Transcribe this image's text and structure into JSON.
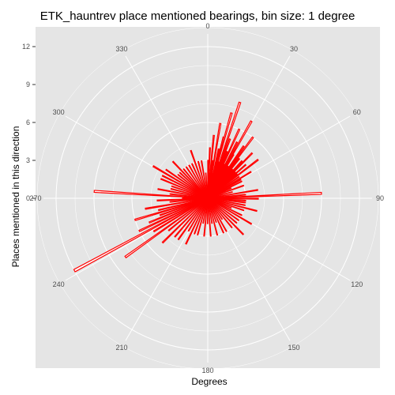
{
  "chart_data": {
    "type": "bar",
    "coord": "polar",
    "title": "ETK_hauntrev place mentioned bearings, bin size: 1 degree",
    "xlabel": "Degrees",
    "ylabel": "Places mentioned in this direction",
    "angle_ticks": [
      "0",
      "30",
      "60",
      "90",
      "120",
      "150",
      "180",
      "210",
      "240",
      "270",
      "300",
      "330"
    ],
    "radial_ticks": [
      "0",
      "3",
      "6",
      "9",
      "12"
    ],
    "ylim": [
      0,
      13
    ],
    "grid": true,
    "bar_color": "#ff0000",
    "bar_fill": "#ffffff",
    "panel_color": "#e5e5e5",
    "grid_color": "#ffffff",
    "bearings_deg": [
      0,
      2,
      4,
      5,
      7,
      9,
      10,
      12,
      14,
      15,
      17,
      18,
      20,
      22,
      24,
      25,
      27,
      29,
      30,
      32,
      34,
      36,
      38,
      40,
      42,
      44,
      46,
      48,
      50,
      52,
      55,
      58,
      60,
      63,
      66,
      70,
      75,
      80,
      84,
      87,
      90,
      93,
      96,
      100,
      104,
      108,
      112,
      116,
      120,
      125,
      130,
      135,
      140,
      145,
      150,
      155,
      160,
      165,
      170,
      175,
      180,
      185,
      190,
      195,
      200,
      205,
      210,
      215,
      220,
      225,
      230,
      234,
      238,
      241,
      244,
      247,
      250,
      253,
      256,
      260,
      264,
      267,
      270,
      273,
      276,
      280,
      284,
      288,
      292,
      296,
      300,
      304,
      308,
      312,
      316,
      320,
      325,
      330,
      335,
      340,
      345,
      350,
      355
    ],
    "counts": [
      3,
      4,
      2,
      5,
      3,
      6,
      2,
      4,
      5,
      7,
      3,
      8,
      5,
      4,
      6,
      3,
      5,
      7,
      4,
      3,
      5,
      6,
      4,
      3,
      4,
      5,
      3,
      4,
      3,
      5,
      3,
      4,
      3,
      3,
      2,
      3,
      2,
      4,
      3,
      9,
      4,
      3,
      3,
      3,
      4,
      3,
      2,
      3,
      4,
      3,
      3,
      4,
      3,
      2,
      3,
      3,
      2,
      3,
      2,
      3,
      2,
      3,
      2,
      3,
      3,
      4,
      3,
      4,
      4,
      5,
      4,
      8,
      5,
      12,
      6,
      5,
      4,
      6,
      4,
      5,
      3,
      4,
      2,
      9,
      3,
      4,
      3,
      3,
      4,
      4,
      5,
      4,
      3,
      3,
      4,
      3,
      3,
      3,
      3,
      4,
      3,
      3,
      2
    ]
  }
}
